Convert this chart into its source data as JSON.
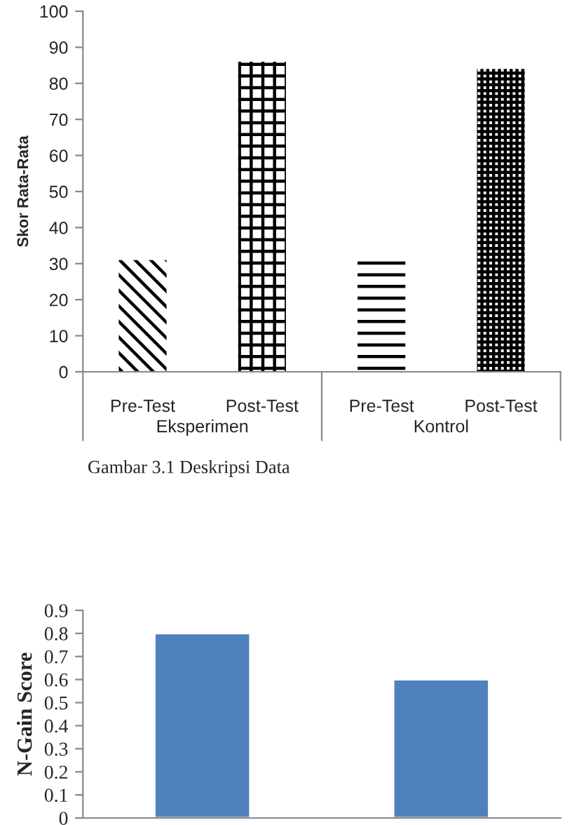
{
  "chart_data": [
    {
      "type": "bar",
      "ylabel": "Skor Rata-Rata",
      "categories": [
        "Pre-Test",
        "Post-Test",
        "Pre-Test",
        "Post-Test"
      ],
      "values": [
        31,
        86,
        32,
        84
      ],
      "colors": [
        "#000000",
        "#000000",
        "#000000",
        "#000000"
      ],
      "ylim": [
        0,
        100
      ],
      "yticks": [
        0,
        10,
        20,
        30,
        40,
        50,
        60,
        70,
        80,
        90,
        100
      ],
      "grid": false,
      "legend": false,
      "annotations": [
        "Eksperimen",
        "Kontrol",
        "Gambar 3.1 Deskripsi Data"
      ]
    },
    {
      "type": "bar",
      "ylabel": "N-Gain Score",
      "categories": [
        null,
        null
      ],
      "values": [
        0.8,
        0.6
      ],
      "color": "#4f81bd",
      "ylim": [
        0,
        0.9
      ],
      "yticks": [
        0,
        0.1,
        0.2,
        0.3,
        0.4,
        0.5,
        0.6,
        0.7,
        0.8,
        0.9
      ],
      "grid": false,
      "legend": false
    }
  ]
}
